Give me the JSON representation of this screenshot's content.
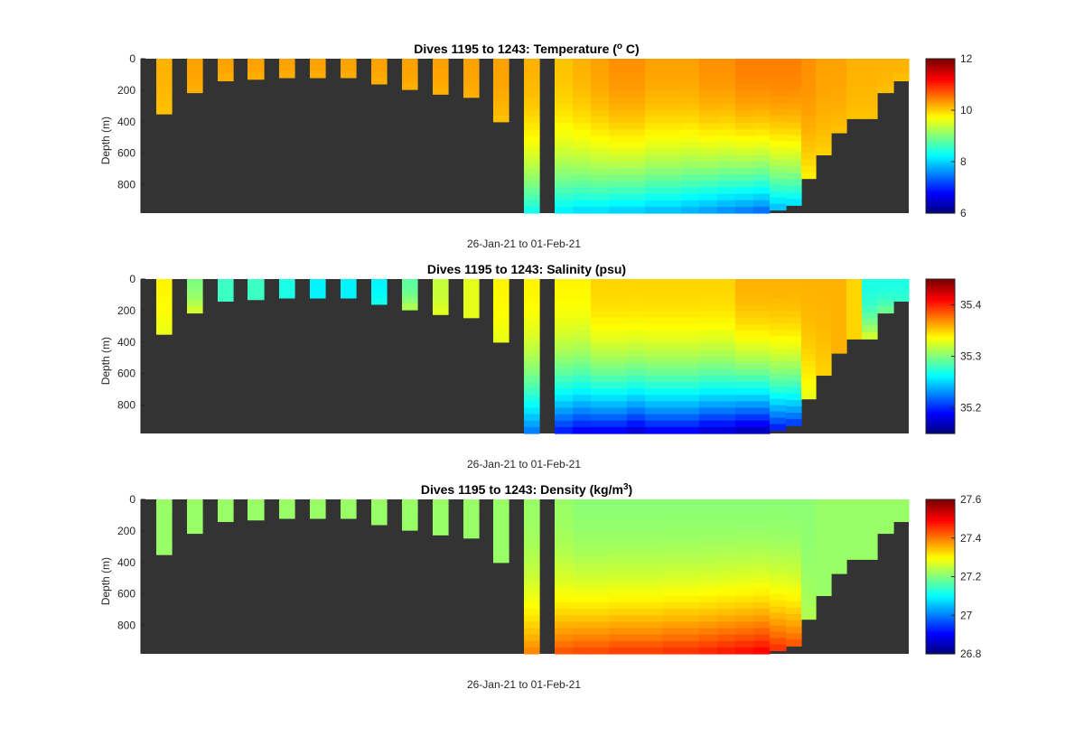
{
  "colors": {
    "background": "#ffffff",
    "no_data": "#333333",
    "colormap": "jet"
  },
  "chart_data": [
    {
      "type": "heatmap",
      "title": "Dives 1195 to 1243: Temperature (",
      "title_super": "o",
      "title_end": " C)",
      "xlabel": "26-Jan-21 to 01-Feb-21",
      "ylabel": "Depth (m)",
      "ylim": [
        980,
        0
      ],
      "yticks": [
        "0",
        "200",
        "400",
        "600",
        "800"
      ],
      "colorbar": {
        "range": [
          6,
          12
        ],
        "ticks": [
          "6",
          "8",
          "10",
          "12"
        ]
      },
      "profiles": [
        {
          "max_depth": 350,
          "surface": 10.2,
          "deep": 10.1
        },
        {
          "max_depth": 215,
          "surface": 10.3,
          "deep": 10.2
        },
        {
          "max_depth": 140,
          "surface": 10.3,
          "deep": 10.2
        },
        {
          "max_depth": 130,
          "surface": 10.3,
          "deep": 10.2
        },
        {
          "max_depth": 120,
          "surface": 10.3,
          "deep": 10.2
        },
        {
          "max_depth": 120,
          "surface": 10.3,
          "deep": 10.2
        },
        {
          "max_depth": 120,
          "surface": 10.3,
          "deep": 10.2
        },
        {
          "max_depth": 160,
          "surface": 10.3,
          "deep": 10.2
        },
        {
          "max_depth": 195,
          "surface": 10.3,
          "deep": 10.2
        },
        {
          "max_depth": 225,
          "surface": 10.3,
          "deep": 10.2
        },
        {
          "max_depth": 245,
          "surface": 10.3,
          "deep": 10.2
        },
        {
          "max_depth": 400,
          "surface": 10.3,
          "deep": 10.1
        },
        {
          "max_depth": 980,
          "surface": 10.2,
          "deep": 8.3
        },
        {
          "max_depth": 0,
          "surface": 0,
          "deep": 0
        },
        {
          "max_depth": 980,
          "surface": 10.1,
          "deep": 8.1
        },
        {
          "max_depth": 980,
          "surface": 10.2,
          "deep": 8.0
        },
        {
          "max_depth": 980,
          "surface": 10.3,
          "deep": 8.0
        },
        {
          "max_depth": 980,
          "surface": 10.4,
          "deep": 7.9
        },
        {
          "max_depth": 980,
          "surface": 10.4,
          "deep": 7.9
        },
        {
          "max_depth": 980,
          "surface": 10.3,
          "deep": 7.8
        },
        {
          "max_depth": 980,
          "surface": 10.3,
          "deep": 7.8
        },
        {
          "max_depth": 980,
          "surface": 10.3,
          "deep": 7.7
        },
        {
          "max_depth": 980,
          "surface": 10.4,
          "deep": 7.6
        },
        {
          "max_depth": 980,
          "surface": 10.4,
          "deep": 7.5
        },
        {
          "max_depth": 980,
          "surface": 10.5,
          "deep": 7.4
        },
        {
          "max_depth": 980,
          "surface": 10.5,
          "deep": 7.3
        },
        {
          "max_depth": 960,
          "surface": 10.5,
          "deep": 7.8
        },
        {
          "max_depth": 930,
          "surface": 10.5,
          "deep": 8.0
        },
        {
          "max_depth": 760,
          "surface": 10.4,
          "deep": 9.8
        },
        {
          "max_depth": 610,
          "surface": 10.3,
          "deep": 10.0
        },
        {
          "max_depth": 470,
          "surface": 10.3,
          "deep": 10.1
        },
        {
          "max_depth": 380,
          "surface": 10.2,
          "deep": 10.1
        },
        {
          "max_depth": 380,
          "surface": 10.2,
          "deep": 10.1
        },
        {
          "max_depth": 215,
          "surface": 10.2,
          "deep": 10.1
        },
        {
          "max_depth": 140,
          "surface": 10.2,
          "deep": 10.1
        }
      ]
    },
    {
      "type": "heatmap",
      "title": "Dives 1195 to 1243: Salinity (psu)",
      "title_super": "",
      "title_end": "",
      "xlabel": "26-Jan-21 to 01-Feb-21",
      "ylabel": "Depth (m)",
      "ylim": [
        980,
        0
      ],
      "yticks": [
        "0",
        "200",
        "400",
        "600",
        "800"
      ],
      "colorbar": {
        "range": [
          35.15,
          35.45
        ],
        "ticks": [
          "35.2",
          "35.3",
          "35.4"
        ]
      },
      "profiles": [
        {
          "max_depth": 350,
          "surface": 35.34,
          "deep": 35.33
        },
        {
          "max_depth": 215,
          "surface": 35.3,
          "deep": 35.33
        },
        {
          "max_depth": 140,
          "surface": 35.28,
          "deep": 35.28
        },
        {
          "max_depth": 130,
          "surface": 35.28,
          "deep": 35.28
        },
        {
          "max_depth": 120,
          "surface": 35.27,
          "deep": 35.27
        },
        {
          "max_depth": 120,
          "surface": 35.26,
          "deep": 35.26
        },
        {
          "max_depth": 120,
          "surface": 35.26,
          "deep": 35.26
        },
        {
          "max_depth": 160,
          "surface": 35.26,
          "deep": 35.27
        },
        {
          "max_depth": 195,
          "surface": 35.29,
          "deep": 35.32
        },
        {
          "max_depth": 225,
          "surface": 35.32,
          "deep": 35.33
        },
        {
          "max_depth": 245,
          "surface": 35.33,
          "deep": 35.33
        },
        {
          "max_depth": 400,
          "surface": 35.34,
          "deep": 35.33
        },
        {
          "max_depth": 980,
          "surface": 35.34,
          "deep": 35.22
        },
        {
          "max_depth": 0,
          "surface": 0,
          "deep": 0
        },
        {
          "max_depth": 980,
          "surface": 35.34,
          "deep": 35.19
        },
        {
          "max_depth": 980,
          "surface": 35.34,
          "deep": 35.18
        },
        {
          "max_depth": 980,
          "surface": 35.35,
          "deep": 35.18
        },
        {
          "max_depth": 980,
          "surface": 35.35,
          "deep": 35.18
        },
        {
          "max_depth": 980,
          "surface": 35.35,
          "deep": 35.17
        },
        {
          "max_depth": 980,
          "surface": 35.35,
          "deep": 35.18
        },
        {
          "max_depth": 980,
          "surface": 35.35,
          "deep": 35.18
        },
        {
          "max_depth": 980,
          "surface": 35.35,
          "deep": 35.18
        },
        {
          "max_depth": 980,
          "surface": 35.35,
          "deep": 35.17
        },
        {
          "max_depth": 980,
          "surface": 35.35,
          "deep": 35.17
        },
        {
          "max_depth": 980,
          "surface": 35.36,
          "deep": 35.16
        },
        {
          "max_depth": 980,
          "surface": 35.36,
          "deep": 35.16
        },
        {
          "max_depth": 960,
          "surface": 35.36,
          "deep": 35.19
        },
        {
          "max_depth": 930,
          "surface": 35.36,
          "deep": 35.2
        },
        {
          "max_depth": 760,
          "surface": 35.36,
          "deep": 35.33
        },
        {
          "max_depth": 610,
          "surface": 35.36,
          "deep": 35.35
        },
        {
          "max_depth": 470,
          "surface": 35.36,
          "deep": 35.36
        },
        {
          "max_depth": 380,
          "surface": 35.35,
          "deep": 35.35
        },
        {
          "max_depth": 380,
          "surface": 35.27,
          "deep": 35.33
        },
        {
          "max_depth": 215,
          "surface": 35.27,
          "deep": 35.3
        },
        {
          "max_depth": 140,
          "surface": 35.27,
          "deep": 35.28
        }
      ]
    },
    {
      "type": "heatmap",
      "title": "Dives 1195 to 1243: Density (kg/m",
      "title_super": "3",
      "title_end": ")",
      "xlabel": "26-Jan-21 to 01-Feb-21",
      "ylabel": "Depth (m)",
      "ylim": [
        980,
        0
      ],
      "yticks": [
        "0",
        "200",
        "400",
        "600",
        "800"
      ],
      "colorbar": {
        "range": [
          26.8,
          27.6
        ],
        "ticks": [
          "26.8",
          "27",
          "27.2",
          "27.4",
          "27.6"
        ]
      },
      "profiles": [
        {
          "max_depth": 350,
          "surface": 27.22,
          "deep": 27.22
        },
        {
          "max_depth": 215,
          "surface": 27.22,
          "deep": 27.22
        },
        {
          "max_depth": 140,
          "surface": 27.22,
          "deep": 27.22
        },
        {
          "max_depth": 130,
          "surface": 27.22,
          "deep": 27.22
        },
        {
          "max_depth": 120,
          "surface": 27.22,
          "deep": 27.22
        },
        {
          "max_depth": 120,
          "surface": 27.22,
          "deep": 27.22
        },
        {
          "max_depth": 120,
          "surface": 27.22,
          "deep": 27.22
        },
        {
          "max_depth": 160,
          "surface": 27.22,
          "deep": 27.22
        },
        {
          "max_depth": 195,
          "surface": 27.22,
          "deep": 27.22
        },
        {
          "max_depth": 225,
          "surface": 27.22,
          "deep": 27.22
        },
        {
          "max_depth": 245,
          "surface": 27.22,
          "deep": 27.22
        },
        {
          "max_depth": 400,
          "surface": 27.22,
          "deep": 27.22
        },
        {
          "max_depth": 980,
          "surface": 27.22,
          "deep": 27.4
        },
        {
          "max_depth": 0,
          "surface": 0,
          "deep": 0
        },
        {
          "max_depth": 980,
          "surface": 27.22,
          "deep": 27.44
        },
        {
          "max_depth": 980,
          "surface": 27.21,
          "deep": 27.45
        },
        {
          "max_depth": 980,
          "surface": 27.21,
          "deep": 27.45
        },
        {
          "max_depth": 980,
          "surface": 27.21,
          "deep": 27.46
        },
        {
          "max_depth": 980,
          "surface": 27.21,
          "deep": 27.46
        },
        {
          "max_depth": 980,
          "surface": 27.21,
          "deep": 27.46
        },
        {
          "max_depth": 980,
          "surface": 27.21,
          "deep": 27.47
        },
        {
          "max_depth": 980,
          "surface": 27.21,
          "deep": 27.47
        },
        {
          "max_depth": 980,
          "surface": 27.21,
          "deep": 27.48
        },
        {
          "max_depth": 980,
          "surface": 27.21,
          "deep": 27.49
        },
        {
          "max_depth": 980,
          "surface": 27.21,
          "deep": 27.5
        },
        {
          "max_depth": 980,
          "surface": 27.21,
          "deep": 27.51
        },
        {
          "max_depth": 960,
          "surface": 27.21,
          "deep": 27.47
        },
        {
          "max_depth": 930,
          "surface": 27.21,
          "deep": 27.44
        },
        {
          "max_depth": 760,
          "surface": 27.21,
          "deep": 27.24
        },
        {
          "max_depth": 610,
          "surface": 27.22,
          "deep": 27.22
        },
        {
          "max_depth": 470,
          "surface": 27.22,
          "deep": 27.22
        },
        {
          "max_depth": 380,
          "surface": 27.22,
          "deep": 27.22
        },
        {
          "max_depth": 380,
          "surface": 27.22,
          "deep": 27.22
        },
        {
          "max_depth": 215,
          "surface": 27.22,
          "deep": 27.22
        },
        {
          "max_depth": 140,
          "surface": 27.22,
          "deep": 27.22
        }
      ]
    }
  ]
}
